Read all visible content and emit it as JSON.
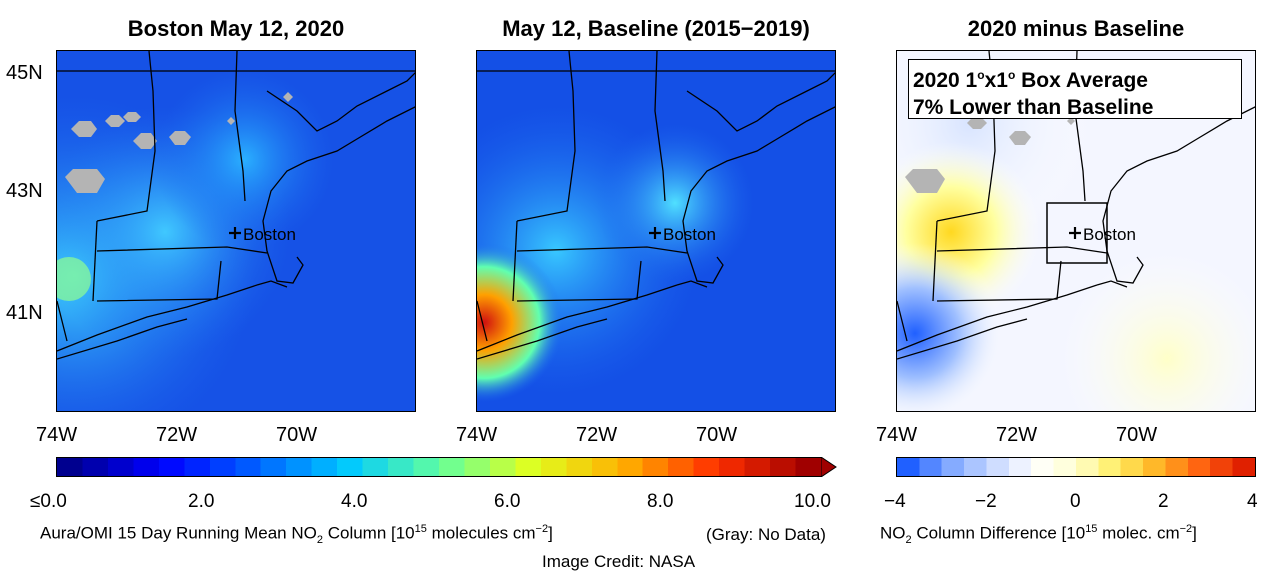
{
  "panels": [
    {
      "title": "Boston May 12, 2020"
    },
    {
      "title": "May 12, Baseline (2015−2019)"
    },
    {
      "title": "2020 minus Baseline"
    }
  ],
  "lat_labels": [
    "45N",
    "43N",
    "41N"
  ],
  "lon_labels": [
    "74W",
    "72W",
    "70W"
  ],
  "city_label": "Boston",
  "difference_note": {
    "line1_pre": "2020 1",
    "line1_sup1": "o",
    "line1_mid": "x1",
    "line1_sup2": "o",
    "line1_post": " Box Average",
    "line2": "7% Lower than Baseline"
  },
  "colorbar_main": {
    "ticks": [
      "≤0.0",
      "2.0",
      "4.0",
      "6.0",
      "8.0",
      "10.0"
    ],
    "range": [
      0,
      10
    ],
    "colors": [
      "#00008f",
      "#0000ff",
      "#0060ff",
      "#00c8ff",
      "#60ffa0",
      "#e0ff20",
      "#ffb000",
      "#ff3000",
      "#a00000"
    ]
  },
  "colorbar_diff": {
    "ticks": [
      "−4",
      "−2",
      "0",
      "2",
      "4"
    ],
    "range": [
      -4,
      4
    ],
    "colors": [
      "#2060ff",
      "#80a8ff",
      "#c8d8ff",
      "#ffffff",
      "#ffffd0",
      "#ffee60",
      "#ffb020",
      "#ff6010",
      "#e02000"
    ]
  },
  "captions": {
    "main_pre": "Aura/OMI 15 Day Running Mean NO",
    "main_sub": "2",
    "main_mid": " Column [10",
    "main_sup1": "15",
    "main_post": " molecules cm",
    "main_sup2": "−2",
    "main_end": "]",
    "gray_note": "(Gray: No Data)",
    "diff_pre": "NO",
    "diff_sub": "2",
    "diff_mid": " Column Difference [10",
    "diff_sup1": "15",
    "diff_post": " molec. cm",
    "diff_sup2": "−2",
    "diff_end": "]",
    "credit": "Image Credit: NASA"
  }
}
